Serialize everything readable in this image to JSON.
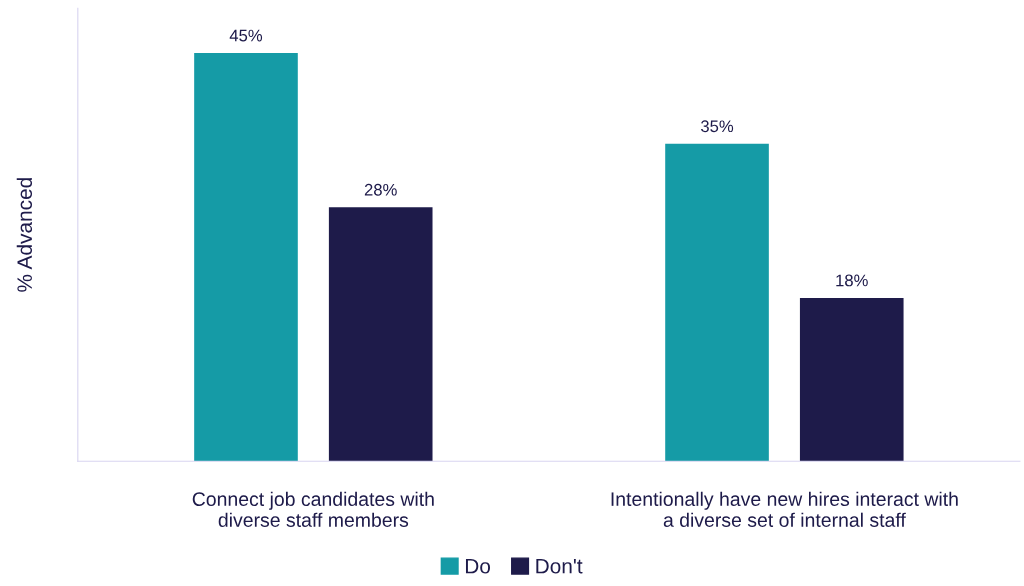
{
  "chart_data": {
    "type": "bar",
    "ylabel": "% Advanced",
    "categories": [
      "Connect job candidates with diverse staff members",
      "Intentionally have new hires interact with a diverse set of internal staff"
    ],
    "series": [
      {
        "name": "Do",
        "color": "#159ba6",
        "values": [
          45,
          35
        ],
        "value_labels": [
          "45%",
          "35%"
        ]
      },
      {
        "name": "Don't",
        "color": "#1e1b4a",
        "values": [
          28,
          18
        ],
        "value_labels": [
          "28%",
          "18%"
        ]
      }
    ],
    "tick_labels": "x",
    "grid": false,
    "legend": "bottom"
  }
}
